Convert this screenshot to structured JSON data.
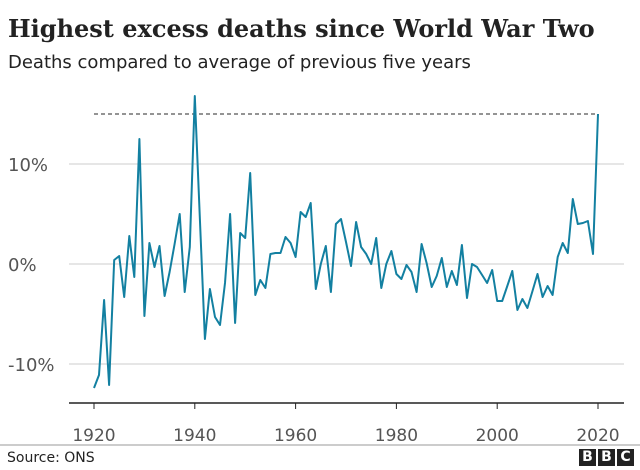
{
  "chart_data": {
    "type": "line",
    "title": "Highest excess deaths since World War Two",
    "subtitle": "Deaths compared to average of previous five years",
    "source": "Source: ONS",
    "logo": "BBC",
    "xlim": [
      1920,
      2020
    ],
    "ylim": [
      -14,
      17
    ],
    "x_ticks": [
      {
        "value": 1920,
        "label": "1920"
      },
      {
        "value": 1940,
        "label": "1940"
      },
      {
        "value": 1960,
        "label": "1960"
      },
      {
        "value": 1980,
        "label": "1980"
      },
      {
        "value": 2000,
        "label": "2000"
      },
      {
        "value": 2020,
        "label": "2020"
      }
    ],
    "y_ticks": [
      {
        "value": 10,
        "label": "10%"
      },
      {
        "value": 0,
        "label": "0%"
      },
      {
        "value": -10,
        "label": "-10%"
      }
    ],
    "grid": "horizontal",
    "line_color": "#1380A1",
    "reference_line": {
      "value": 15.0,
      "style": "dashed",
      "color": "#555555"
    },
    "x": [
      1920,
      1921,
      1922,
      1923,
      1924,
      1925,
      1926,
      1927,
      1928,
      1929,
      1930,
      1931,
      1932,
      1933,
      1934,
      1935,
      1936,
      1937,
      1938,
      1939,
      1940,
      1941,
      1942,
      1943,
      1944,
      1945,
      1946,
      1947,
      1948,
      1949,
      1950,
      1951,
      1952,
      1953,
      1954,
      1955,
      1956,
      1957,
      1958,
      1959,
      1960,
      1961,
      1962,
      1963,
      1964,
      1965,
      1966,
      1967,
      1968,
      1969,
      1970,
      1971,
      1972,
      1973,
      1974,
      1975,
      1976,
      1977,
      1978,
      1979,
      1980,
      1981,
      1982,
      1983,
      1984,
      1985,
      1986,
      1987,
      1988,
      1989,
      1990,
      1991,
      1992,
      1993,
      1994,
      1995,
      1996,
      1997,
      1998,
      1999,
      2000,
      2001,
      2002,
      2003,
      2004,
      2005,
      2006,
      2007,
      2008,
      2009,
      2010,
      2011,
      2012,
      2013,
      2014,
      2015,
      2016,
      2017,
      2018,
      2019,
      2020
    ],
    "values": [
      -12.4,
      -11.1,
      -3.6,
      -12.1,
      0.4,
      0.8,
      -3.3,
      2.8,
      -1.3,
      12.5,
      -5.2,
      2.1,
      -0.3,
      1.8,
      -3.2,
      -0.8,
      2.0,
      5.0,
      -2.8,
      1.7,
      16.8,
      4.7,
      -7.5,
      -2.5,
      -5.3,
      -6.1,
      -1.9,
      5.0,
      -5.9,
      3.1,
      2.6,
      9.1,
      -3.1,
      -1.6,
      -2.4,
      1.0,
      1.1,
      1.1,
      2.7,
      2.1,
      0.7,
      5.2,
      4.7,
      6.1,
      -2.5,
      0.0,
      1.8,
      -2.8,
      4.0,
      4.5,
      2.2,
      -0.2,
      4.2,
      1.7,
      1.0,
      0.0,
      2.6,
      -2.4,
      0.0,
      1.3,
      -1.0,
      -1.5,
      -0.1,
      -0.8,
      -2.8,
      2.0,
      0.1,
      -2.3,
      -1.2,
      0.6,
      -2.3,
      -0.7,
      -2.1,
      1.9,
      -3.4,
      0.0,
      -0.3,
      -1.1,
      -1.9,
      -0.6,
      -3.7,
      -3.7,
      -2.2,
      -0.7,
      -4.6,
      -3.5,
      -4.4,
      -2.7,
      -1.0,
      -3.3,
      -2.2,
      -3.1,
      0.7,
      2.1,
      1.1,
      6.5,
      4.0,
      4.1,
      4.3,
      1.0,
      15.0
    ]
  }
}
